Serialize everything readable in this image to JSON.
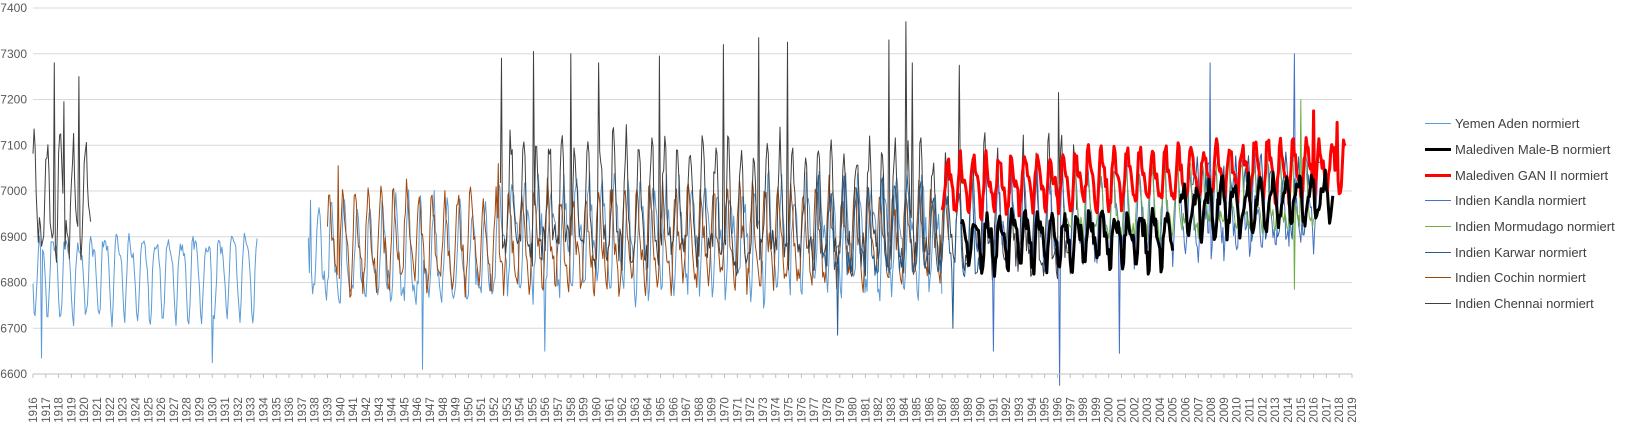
{
  "chart_data": {
    "type": "line",
    "title": "",
    "xlabel": "",
    "ylabel": "",
    "xlim": [
      1916,
      2019
    ],
    "ylim": [
      6600,
      7400
    ],
    "y_ticks": [
      6600,
      6700,
      6800,
      6900,
      7000,
      7100,
      7200,
      7300,
      7400
    ],
    "x_ticks": [
      1916,
      1917,
      1918,
      1919,
      1920,
      1921,
      1922,
      1923,
      1924,
      1925,
      1926,
      1927,
      1928,
      1929,
      1930,
      1931,
      1932,
      1933,
      1934,
      1935,
      1936,
      1937,
      1938,
      1939,
      1940,
      1941,
      1942,
      1943,
      1944,
      1945,
      1946,
      1947,
      1948,
      1949,
      1950,
      1951,
      1952,
      1953,
      1954,
      1955,
      1956,
      1957,
      1958,
      1959,
      1960,
      1961,
      1962,
      1963,
      1964,
      1965,
      1966,
      1967,
      1968,
      1969,
      1970,
      1971,
      1972,
      1973,
      1974,
      1975,
      1976,
      1977,
      1978,
      1979,
      1980,
      1981,
      1982,
      1983,
      1984,
      1985,
      1986,
      1987,
      1988,
      1989,
      1990,
      1991,
      1992,
      1993,
      1994,
      1995,
      1996,
      1997,
      1998,
      1999,
      2000,
      2001,
      2002,
      2003,
      2004,
      2005,
      2006,
      2007,
      2008,
      2009,
      2010,
      2011,
      2012,
      2013,
      2014,
      2015,
      2016,
      2017,
      2018,
      2019
    ],
    "grid": true,
    "legend_position": "right",
    "series": [
      {
        "name": "Yemen Aden normiert",
        "color": "#5b9bd5",
        "width": 1,
        "segments": [
          {
            "start": 1916.0,
            "end": 1933.5,
            "mean": 6825,
            "amp": 95,
            "noise": 18,
            "trend": 0
          },
          {
            "start": 1937.5,
            "end": 1952.3,
            "mean": 6855,
            "amp": 110,
            "noise": 30,
            "trend": 0
          },
          {
            "start": 1952.3,
            "end": 1987.0,
            "mean": 6900,
            "amp": 120,
            "noise": 40,
            "trend": 0
          }
        ],
        "spikes": [
          {
            "x": 1916.7,
            "y": 6635
          },
          {
            "x": 1930.0,
            "y": 6625
          },
          {
            "x": 1946.4,
            "y": 6610
          },
          {
            "x": 1956.0,
            "y": 6650
          },
          {
            "x": 1937.7,
            "y": 6980
          }
        ]
      },
      {
        "name": "Malediven Male-B normiert",
        "color": "#000000",
        "width": 3,
        "segments": [
          {
            "start": 1988.5,
            "end": 2005.0,
            "mean": 6890,
            "amp": 60,
            "noise": 22,
            "trend": 0.8
          },
          {
            "start": 2005.5,
            "end": 2017.5,
            "mean": 6960,
            "amp": 55,
            "noise": 20,
            "trend": 2.5
          }
        ],
        "spikes": []
      },
      {
        "name": "Malediven GAN II normiert",
        "color": "#ff0000",
        "width": 3,
        "segments": [
          {
            "start": 1987.0,
            "end": 2018.5,
            "mean": 7010,
            "amp": 60,
            "noise": 20,
            "trend": 1.4
          }
        ],
        "spikes": [
          {
            "x": 2016.0,
            "y": 7175
          },
          {
            "x": 2017.8,
            "y": 7150
          }
        ]
      },
      {
        "name": "Indien Kandla normiert",
        "color": "#4472c4",
        "width": 1,
        "segments": [
          {
            "start": 1989.5,
            "end": 2016.5,
            "mean": 6920,
            "amp": 95,
            "noise": 35,
            "trend": 2.0
          }
        ],
        "spikes": [
          {
            "x": 1996.2,
            "y": 6575
          },
          {
            "x": 2000.8,
            "y": 6645
          },
          {
            "x": 1991.0,
            "y": 6650
          },
          {
            "x": 2007.9,
            "y": 7280
          },
          {
            "x": 2014.5,
            "y": 7300
          }
        ]
      },
      {
        "name": "Indien Mormudago normiert",
        "color": "#70ad47",
        "width": 1,
        "segments": [
          {
            "start": 1996.5,
            "end": 2016.0,
            "mean": 6960,
            "amp": 80,
            "noise": 25,
            "trend": 1.5
          }
        ],
        "spikes": [
          {
            "x": 2014.5,
            "y": 6785
          },
          {
            "x": 2015.0,
            "y": 7200
          }
        ]
      },
      {
        "name": "Indien Karwar normiert",
        "color": "#255e91",
        "width": 1,
        "segments": [
          {
            "start": 1977.0,
            "end": 1990.0,
            "mean": 6900,
            "amp": 100,
            "noise": 35,
            "trend": 0
          },
          {
            "start": 2006.5,
            "end": 2016.0,
            "mean": 6990,
            "amp": 85,
            "noise": 30,
            "trend": 0
          }
        ],
        "spikes": [
          {
            "x": 1978.8,
            "y": 6685
          },
          {
            "x": 1987.8,
            "y": 6700
          }
        ]
      },
      {
        "name": "Indien Cochin normiert",
        "color": "#9e480e",
        "width": 1,
        "segments": [
          {
            "start": 1939.0,
            "end": 1987.5,
            "mean": 6885,
            "amp": 105,
            "noise": 32,
            "trend": 0.3
          }
        ],
        "spikes": [
          {
            "x": 1939.8,
            "y": 7055
          },
          {
            "x": 1952.3,
            "y": 7060
          }
        ]
      },
      {
        "name": "Indien Chennai normiert",
        "color": "#404040",
        "width": 1,
        "segments": [
          {
            "start": 1916.0,
            "end": 1920.5,
            "mean": 6960,
            "amp": 130,
            "noise": 40,
            "trend": 0
          },
          {
            "start": 1952.5,
            "end": 1997.5,
            "mean": 6960,
            "amp": 135,
            "noise": 45,
            "trend": -0.6
          }
        ],
        "spikes": [
          {
            "x": 1917.7,
            "y": 7280
          },
          {
            "x": 1919.6,
            "y": 7250
          },
          {
            "x": 1918.4,
            "y": 7195
          },
          {
            "x": 1952.6,
            "y": 7290
          },
          {
            "x": 1955.1,
            "y": 7305
          },
          {
            "x": 1958.0,
            "y": 7300
          },
          {
            "x": 1960.2,
            "y": 7280
          },
          {
            "x": 1964.9,
            "y": 7295
          },
          {
            "x": 1969.9,
            "y": 7320
          },
          {
            "x": 1972.7,
            "y": 7335
          },
          {
            "x": 1974.9,
            "y": 7325
          },
          {
            "x": 1982.8,
            "y": 7330
          },
          {
            "x": 1984.2,
            "y": 7370
          },
          {
            "x": 1984.7,
            "y": 7280
          },
          {
            "x": 1988.3,
            "y": 7275
          },
          {
            "x": 1996.1,
            "y": 7215
          }
        ]
      }
    ]
  }
}
